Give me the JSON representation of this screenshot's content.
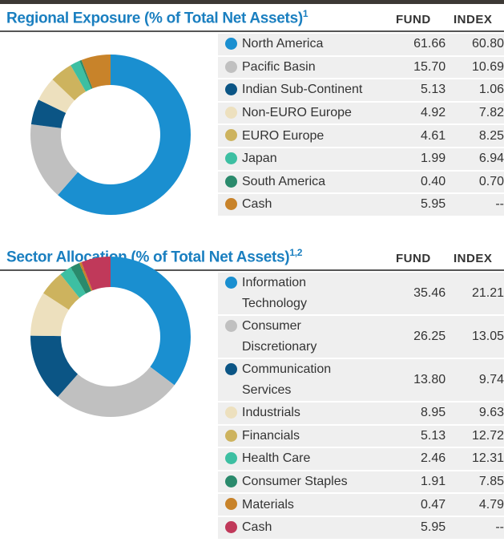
{
  "chart_data": [
    {
      "type": "pie",
      "title": "Regional Exposure (% of Total Net Assets)",
      "title_note": "1",
      "categories": [
        "North America",
        "Pacific Basin",
        "Indian Sub-Continent",
        "Non-EURO Europe",
        "EURO Europe",
        "Japan",
        "South America",
        "Cash"
      ],
      "colors": [
        "#1a8fd0",
        "#c0c0c0",
        "#0b5585",
        "#ede0be",
        "#cdb35e",
        "#3dbfa2",
        "#2a8a6c",
        "#c8832a"
      ],
      "series": [
        {
          "name": "FUND",
          "values": [
            61.66,
            15.7,
            5.13,
            4.92,
            4.61,
            1.99,
            0.4,
            5.95
          ],
          "value_labels": [
            "61.66",
            "15.70",
            "5.13",
            "4.92",
            "4.61",
            "1.99",
            "0.40",
            "5.95"
          ]
        },
        {
          "name": "INDEX",
          "values": [
            60.8,
            10.69,
            1.06,
            7.82,
            8.25,
            6.94,
            0.7,
            null
          ],
          "value_labels": [
            "60.80",
            "10.69",
            "1.06",
            "7.82",
            "8.25",
            "6.94",
            "0.70",
            "--"
          ]
        }
      ]
    },
    {
      "type": "pie",
      "title": "Sector Allocation (% of Total Net Assets)",
      "title_note": "1,2",
      "categories": [
        "Information Technology",
        "Consumer Discretionary",
        "Communication Services",
        "Industrials",
        "Financials",
        "Health Care",
        "Consumer Staples",
        "Materials",
        "Cash"
      ],
      "colors": [
        "#1a8fd0",
        "#c0c0c0",
        "#0b5585",
        "#ede0be",
        "#cdb35e",
        "#3dbfa2",
        "#2a8a6c",
        "#c8832a",
        "#c0395a"
      ],
      "series": [
        {
          "name": "FUND",
          "values": [
            35.46,
            26.25,
            13.8,
            8.95,
            5.13,
            2.46,
            1.91,
            0.47,
            5.95
          ],
          "value_labels": [
            "35.46",
            "26.25",
            "13.80",
            "8.95",
            "5.13",
            "2.46",
            "1.91",
            "0.47",
            "5.95"
          ]
        },
        {
          "name": "INDEX",
          "values": [
            21.21,
            13.05,
            9.74,
            9.63,
            12.72,
            12.31,
            7.85,
            4.79,
            null
          ],
          "value_labels": [
            "21.21",
            "13.05",
            "9.74",
            "9.63",
            "12.72",
            "12.31",
            "7.85",
            "4.79",
            "--"
          ]
        }
      ]
    }
  ]
}
